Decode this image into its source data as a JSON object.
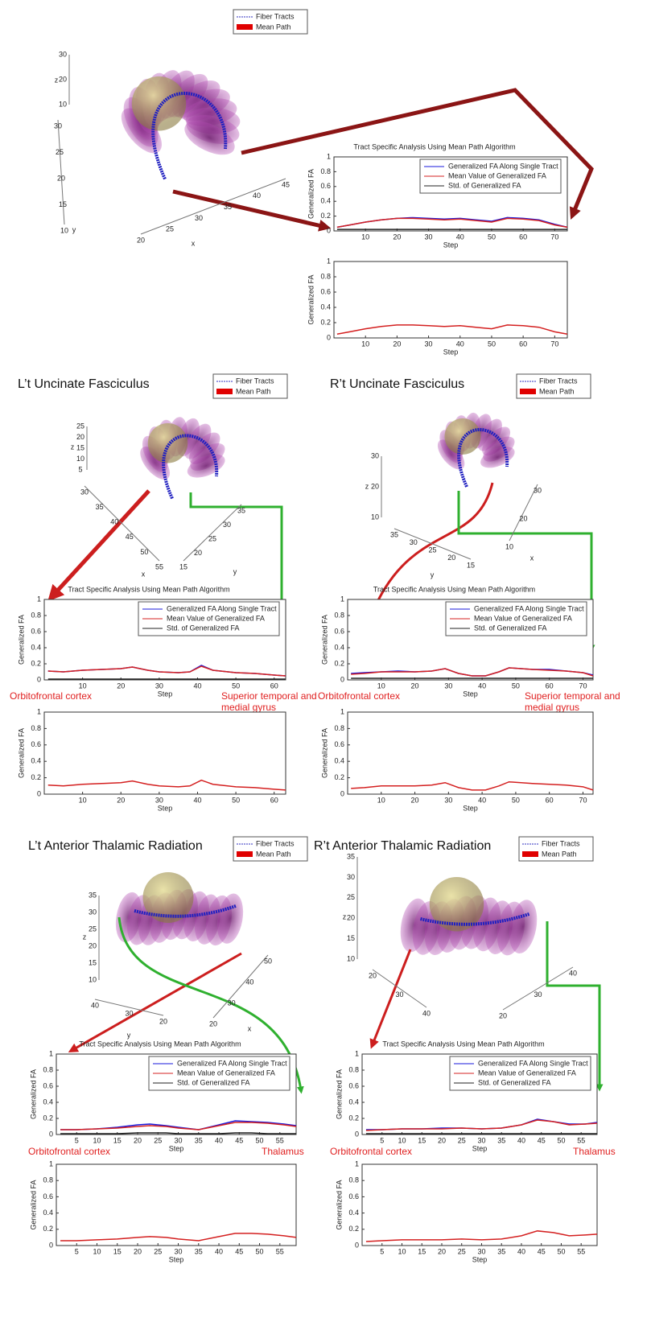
{
  "panel_titles": [
    "L’t Uncinate Fasciculus",
    "R’t Uncinate Fasciculus",
    "L’t  Anterior Thalamic Radiation",
    "R’t  Anterior Thalamic Radiation"
  ],
  "legend3d": [
    "Fiber Tracts",
    "Mean Path"
  ],
  "annotations": {
    "orbitofrontal": "Orbitofrontal cortex",
    "superior": [
      "Superior temporal and",
      "medial gyrus"
    ],
    "thalamus": "Thalamus"
  },
  "scenes": [
    {
      "z": {
        "label": "z",
        "ticks": [
          30,
          20,
          10
        ]
      },
      "a": {
        "label": "y",
        "ticks": [
          30,
          25,
          20,
          15,
          10
        ]
      },
      "b": {
        "label": "x",
        "ticks": [
          20,
          25,
          30,
          35,
          40,
          45
        ]
      }
    },
    {
      "z": {
        "label": "z",
        "ticks": [
          25,
          20,
          15,
          10,
          5
        ]
      },
      "a": {
        "label": "x",
        "ticks": [
          30,
          35,
          40,
          45,
          50,
          55
        ]
      },
      "b": {
        "label": "y",
        "ticks": [
          35,
          30,
          25,
          20,
          15
        ]
      }
    },
    {
      "z": {
        "label": "z",
        "ticks": [
          30,
          20,
          10
        ]
      },
      "a": {
        "label": "y",
        "ticks": [
          35,
          30,
          25,
          20,
          15
        ]
      },
      "b": {
        "label": "x",
        "ticks": [
          30,
          20,
          10
        ]
      }
    },
    {
      "z": {
        "label": "z",
        "ticks": [
          35,
          30,
          25,
          20,
          15,
          10
        ]
      },
      "a": {
        "label": "y",
        "ticks": [
          40,
          30,
          20
        ]
      },
      "b": {
        "label": "x",
        "ticks": [
          50,
          40,
          30,
          20
        ]
      }
    },
    {
      "z": {
        "label": "z",
        "ticks": [
          35,
          30,
          25,
          20,
          15,
          10
        ]
      },
      "a": {
        "ticks": [
          20,
          30,
          40
        ]
      },
      "b": {
        "ticks": [
          40,
          30,
          20
        ]
      }
    }
  ],
  "chart_data": [
    {
      "type": "line",
      "title": "Tract Specific Analysis Using Mean Path Algorithm",
      "xlabel": "Step",
      "ylabel": "Generalized FA",
      "legend": "upper right",
      "x": [
        1,
        5,
        10,
        15,
        20,
        25,
        30,
        35,
        40,
        45,
        50,
        55,
        60,
        65,
        70,
        74
      ],
      "xlim": [
        0,
        74
      ],
      "xticks": [
        10,
        20,
        30,
        40,
        50,
        60,
        70
      ],
      "ylim": [
        0,
        1
      ],
      "yticks": [
        0,
        0.2,
        0.4,
        0.6,
        0.8,
        1
      ],
      "series": [
        {
          "name": "Generalized FA Along Single Tract",
          "color": "#1a1adc",
          "values": [
            0.05,
            0.08,
            0.12,
            0.15,
            0.17,
            0.18,
            0.17,
            0.16,
            0.17,
            0.15,
            0.13,
            0.18,
            0.17,
            0.15,
            0.09,
            0.05
          ]
        },
        {
          "name": "Mean Value of Generalized FA",
          "color": "#d42020",
          "values": [
            0.05,
            0.08,
            0.12,
            0.15,
            0.17,
            0.17,
            0.16,
            0.15,
            0.16,
            0.14,
            0.12,
            0.17,
            0.16,
            0.14,
            0.08,
            0.05
          ]
        },
        {
          "name": "Std. of Generalized FA",
          "color": "#222222",
          "values": [
            0.02,
            0.02,
            0.02,
            0.02,
            0.02,
            0.02,
            0.02,
            0.02,
            0.02,
            0.02,
            0.02,
            0.02,
            0.02,
            0.02,
            0.02,
            0.02
          ]
        }
      ]
    },
    {
      "type": "line",
      "xlabel": "Step",
      "ylabel": "Generalized FA",
      "x": [
        1,
        5,
        10,
        15,
        20,
        25,
        30,
        35,
        40,
        45,
        50,
        55,
        60,
        65,
        70,
        74
      ],
      "xlim": [
        0,
        74
      ],
      "xticks": [
        10,
        20,
        30,
        40,
        50,
        60,
        70
      ],
      "ylim": [
        0,
        1
      ],
      "yticks": [
        0,
        0.2,
        0.4,
        0.6,
        0.8,
        1
      ],
      "series": [
        {
          "color": "#d42020",
          "values": [
            0.05,
            0.08,
            0.12,
            0.15,
            0.17,
            0.17,
            0.16,
            0.15,
            0.16,
            0.14,
            0.12,
            0.17,
            0.16,
            0.14,
            0.08,
            0.05
          ]
        }
      ]
    },
    {
      "type": "line",
      "title": "Tract Specific Analysis Using Mean Path Algorithm",
      "xlabel": "Step",
      "ylabel": "Generalized FA",
      "legend": "upper right",
      "x": [
        1,
        5,
        10,
        15,
        20,
        23,
        27,
        30,
        35,
        38,
        41,
        44,
        50,
        55,
        60,
        63
      ],
      "xlim": [
        0,
        63
      ],
      "xticks": [
        10,
        20,
        30,
        40,
        50,
        60
      ],
      "ylim": [
        0,
        1
      ],
      "yticks": [
        0,
        0.2,
        0.4,
        0.6,
        0.8,
        1
      ],
      "series": [
        {
          "name": "Generalized FA Along Single Tract",
          "color": "#1a1adc",
          "values": [
            0.11,
            0.1,
            0.12,
            0.13,
            0.14,
            0.16,
            0.12,
            0.1,
            0.09,
            0.1,
            0.18,
            0.12,
            0.09,
            0.08,
            0.06,
            0.05
          ]
        },
        {
          "name": "Mean Value of Generalized FA",
          "color": "#d42020",
          "values": [
            0.11,
            0.1,
            0.12,
            0.13,
            0.14,
            0.16,
            0.12,
            0.1,
            0.09,
            0.1,
            0.17,
            0.12,
            0.09,
            0.08,
            0.06,
            0.05
          ]
        },
        {
          "name": "Std. of Generalized FA",
          "color": "#222222",
          "values": [
            0.01,
            0.01,
            0.01,
            0.01,
            0.01,
            0.01,
            0.01,
            0.01,
            0.01,
            0.01,
            0.01,
            0.01,
            0.01,
            0.01,
            0.01,
            0.01
          ]
        }
      ]
    },
    {
      "type": "line",
      "xlabel": "Step",
      "ylabel": "Generalized FA",
      "x": [
        1,
        5,
        10,
        15,
        20,
        23,
        27,
        30,
        35,
        38,
        41,
        44,
        50,
        55,
        60,
        63
      ],
      "xlim": [
        0,
        63
      ],
      "xticks": [
        10,
        20,
        30,
        40,
        50,
        60
      ],
      "ylim": [
        0,
        1
      ],
      "yticks": [
        0,
        0.2,
        0.4,
        0.6,
        0.8,
        1
      ],
      "series": [
        {
          "color": "#d42020",
          "values": [
            0.11,
            0.1,
            0.12,
            0.13,
            0.14,
            0.16,
            0.12,
            0.1,
            0.09,
            0.1,
            0.17,
            0.12,
            0.09,
            0.08,
            0.06,
            0.05
          ]
        }
      ]
    },
    {
      "type": "line",
      "title": "Tract Specific Analysis Using Mean Path Algorithm",
      "xlabel": "Step",
      "ylabel": "Generalized FA",
      "legend": "upper right",
      "x": [
        1,
        5,
        10,
        15,
        20,
        25,
        29,
        33,
        37,
        41,
        45,
        48,
        55,
        60,
        65,
        70,
        73
      ],
      "xlim": [
        0,
        73
      ],
      "xticks": [
        10,
        20,
        30,
        40,
        50,
        60,
        70
      ],
      "ylim": [
        0,
        1
      ],
      "yticks": [
        0,
        0.2,
        0.4,
        0.6,
        0.8,
        1
      ],
      "series": [
        {
          "name": "Generalized FA Along Single Tract",
          "color": "#1a1adc",
          "values": [
            0.08,
            0.09,
            0.1,
            0.11,
            0.1,
            0.11,
            0.14,
            0.08,
            0.05,
            0.05,
            0.1,
            0.15,
            0.13,
            0.13,
            0.11,
            0.09,
            0.06
          ]
        },
        {
          "name": "Mean Value of Generalized FA",
          "color": "#d42020",
          "values": [
            0.07,
            0.08,
            0.1,
            0.1,
            0.1,
            0.11,
            0.14,
            0.08,
            0.05,
            0.05,
            0.1,
            0.15,
            0.13,
            0.12,
            0.11,
            0.09,
            0.05
          ]
        },
        {
          "name": "Std. of Generalized FA",
          "color": "#222222",
          "values": [
            0.02,
            0.02,
            0.02,
            0.02,
            0.02,
            0.02,
            0.02,
            0.02,
            0.02,
            0.02,
            0.02,
            0.02,
            0.02,
            0.02,
            0.02,
            0.02,
            0.02
          ]
        }
      ]
    },
    {
      "type": "line",
      "xlabel": "Step",
      "ylabel": "Generalized FA",
      "x": [
        1,
        5,
        10,
        15,
        20,
        25,
        29,
        33,
        37,
        41,
        45,
        48,
        55,
        60,
        65,
        70,
        73
      ],
      "xlim": [
        0,
        73
      ],
      "xticks": [
        10,
        20,
        30,
        40,
        50,
        60,
        70
      ],
      "ylim": [
        0,
        1
      ],
      "yticks": [
        0,
        0.2,
        0.4,
        0.6,
        0.8,
        1
      ],
      "series": [
        {
          "color": "#d42020",
          "values": [
            0.07,
            0.08,
            0.1,
            0.1,
            0.1,
            0.11,
            0.14,
            0.08,
            0.05,
            0.05,
            0.1,
            0.15,
            0.13,
            0.12,
            0.11,
            0.09,
            0.05
          ]
        }
      ]
    },
    {
      "type": "line",
      "title": "Tract Specific Analysis Using Mean Path Algorithm",
      "xlabel": "Step",
      "ylabel": "Generalized FA",
      "legend": "upper right",
      "x": [
        1,
        5,
        10,
        15,
        20,
        23,
        27,
        30,
        35,
        40,
        44,
        48,
        52,
        56,
        59
      ],
      "xlim": [
        0,
        59
      ],
      "xticks": [
        5,
        10,
        15,
        20,
        25,
        30,
        35,
        40,
        45,
        50,
        55
      ],
      "ylim": [
        0,
        1
      ],
      "yticks": [
        0,
        0.2,
        0.4,
        0.6,
        0.8,
        1
      ],
      "series": [
        {
          "name": "Generalized FA Along Single Tract",
          "color": "#1a1adc",
          "values": [
            0.06,
            0.06,
            0.07,
            0.09,
            0.12,
            0.13,
            0.11,
            0.09,
            0.06,
            0.12,
            0.17,
            0.16,
            0.15,
            0.13,
            0.11
          ]
        },
        {
          "name": "Mean Value of Generalized FA",
          "color": "#d42020",
          "values": [
            0.06,
            0.06,
            0.07,
            0.08,
            0.1,
            0.11,
            0.1,
            0.08,
            0.06,
            0.11,
            0.15,
            0.15,
            0.14,
            0.12,
            0.1
          ]
        },
        {
          "name": "Std. of Generalized FA",
          "color": "#222222",
          "values": [
            0.01,
            0.01,
            0.01,
            0.01,
            0.02,
            0.02,
            0.02,
            0.01,
            0.01,
            0.01,
            0.02,
            0.02,
            0.01,
            0.01,
            0.01
          ]
        }
      ]
    },
    {
      "type": "line",
      "xlabel": "Step",
      "ylabel": "Generalized FA",
      "x": [
        1,
        5,
        10,
        15,
        20,
        23,
        27,
        30,
        35,
        40,
        44,
        48,
        52,
        56,
        59
      ],
      "xlim": [
        0,
        59
      ],
      "xticks": [
        5,
        10,
        15,
        20,
        25,
        30,
        35,
        40,
        45,
        50,
        55
      ],
      "ylim": [
        0,
        1
      ],
      "yticks": [
        0,
        0.2,
        0.4,
        0.6,
        0.8,
        1
      ],
      "series": [
        {
          "color": "#d42020",
          "values": [
            0.06,
            0.06,
            0.07,
            0.08,
            0.1,
            0.11,
            0.1,
            0.08,
            0.06,
            0.11,
            0.15,
            0.15,
            0.14,
            0.12,
            0.1
          ]
        }
      ]
    },
    {
      "type": "line",
      "title": "Tract Specific Analysis Using Mean Path Algorithm",
      "xlabel": "Step",
      "ylabel": "Generalized FA",
      "legend": "upper right",
      "x": [
        1,
        5,
        10,
        15,
        20,
        25,
        30,
        35,
        40,
        44,
        48,
        52,
        56,
        59
      ],
      "xlim": [
        0,
        59
      ],
      "xticks": [
        5,
        10,
        15,
        20,
        25,
        30,
        35,
        40,
        45,
        50,
        55
      ],
      "ylim": [
        0,
        1
      ],
      "yticks": [
        0,
        0.2,
        0.4,
        0.6,
        0.8,
        1
      ],
      "series": [
        {
          "name": "Generalized FA Along Single Tract",
          "color": "#1a1adc",
          "values": [
            0.06,
            0.06,
            0.07,
            0.07,
            0.08,
            0.08,
            0.07,
            0.08,
            0.12,
            0.19,
            0.16,
            0.13,
            0.13,
            0.15
          ]
        },
        {
          "name": "Mean Value of Generalized FA",
          "color": "#d42020",
          "values": [
            0.05,
            0.06,
            0.07,
            0.07,
            0.07,
            0.08,
            0.07,
            0.08,
            0.12,
            0.18,
            0.16,
            0.12,
            0.13,
            0.14
          ]
        },
        {
          "name": "Std. of Generalized FA",
          "color": "#222222",
          "values": [
            0.01,
            0.01,
            0.01,
            0.01,
            0.01,
            0.01,
            0.01,
            0.01,
            0.01,
            0.01,
            0.01,
            0.01,
            0.01,
            0.01
          ]
        }
      ]
    },
    {
      "type": "line",
      "xlabel": "Step",
      "ylabel": "Generalized FA",
      "x": [
        1,
        5,
        10,
        15,
        20,
        25,
        30,
        35,
        40,
        44,
        48,
        52,
        56,
        59
      ],
      "xlim": [
        0,
        59
      ],
      "xticks": [
        5,
        10,
        15,
        20,
        25,
        30,
        35,
        40,
        45,
        50,
        55
      ],
      "ylim": [
        0,
        1
      ],
      "yticks": [
        0,
        0.2,
        0.4,
        0.6,
        0.8,
        1
      ],
      "series": [
        {
          "color": "#d42020",
          "values": [
            0.05,
            0.06,
            0.07,
            0.07,
            0.07,
            0.08,
            0.07,
            0.08,
            0.12,
            0.18,
            0.16,
            0.12,
            0.13,
            0.14
          ]
        }
      ]
    }
  ]
}
